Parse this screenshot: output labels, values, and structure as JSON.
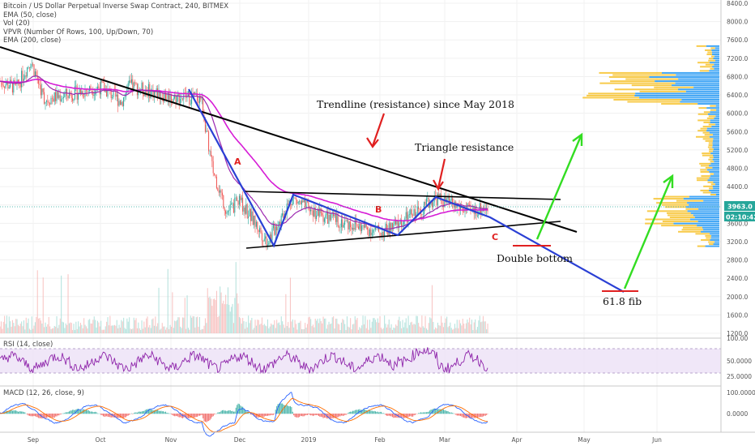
{
  "legend": {
    "title": "Bitcoin / US Dollar Perpetual Inverse Swap Contract, 240, BITMEX",
    "lines": [
      "EMA (50, close)",
      "Vol (20)",
      "VPVR (Number Of Rows, 100, Up/Down, 70)",
      "EMA (200, close)"
    ]
  },
  "panels": {
    "rsi_label": "RSI (14, close)",
    "macd_label": "MACD (12, 26, close, 9)"
  },
  "price_axis": {
    "ticks": [
      "8400.0",
      "8000.0",
      "7600.0",
      "7200.0",
      "6800.0",
      "6400.0",
      "6000.0",
      "5600.0",
      "5200.0",
      "4800.0",
      "4400.0",
      "4000.0",
      "3600.0",
      "3200.0",
      "2800.0",
      "2400.0",
      "2000.0",
      "1600.0",
      "1200.0"
    ],
    "current_price": "3963.0",
    "countdown": "02:10:42"
  },
  "rsi_axis": {
    "ticks": [
      "100.00",
      "50.0000",
      "25.0000"
    ]
  },
  "macd_axis": {
    "ticks": [
      "100.0000",
      "0.0000"
    ]
  },
  "time_axis": {
    "labels": [
      "Sep",
      "Oct",
      "Nov",
      "Dec",
      "2019",
      "Feb",
      "Mar",
      "Apr",
      "May",
      "Jun"
    ]
  },
  "annotations": {
    "trendline": "Trendline (resistance) since May 2018",
    "triangle": "Triangle resistance",
    "double_bottom": "Double bottom",
    "fib": "61.8 fib",
    "wave_a": "A",
    "wave_b": "B",
    "wave_c": "C"
  },
  "colors": {
    "candle_up": "#26a69a",
    "candle_down": "#ef5350",
    "ema50": "#9c27b0",
    "ema200": "#d61cd6",
    "wave": "#2a3fd4",
    "trend": "#000000",
    "green_arrow": "#33dd22",
    "red_arrow": "#e02020",
    "vpvr_up": "#2196f3",
    "vpvr_down": "#f7c22c",
    "rsi_line": "#8e24aa",
    "rsi_band": "#e9dcf5"
  },
  "chart_data": {
    "type": "candlestick",
    "title": "Bitcoin / US Dollar Perpetual Inverse Swap Contract, 240, BITMEX",
    "y_range": [
      1200,
      8400
    ],
    "price_path": [
      {
        "x": "Aug 25",
        "y": 6700
      },
      {
        "x": "Sep 1",
        "y": 6550
      },
      {
        "x": "Sep 5",
        "y": 7150
      },
      {
        "x": "Sep 10",
        "y": 6300
      },
      {
        "x": "Sep 20",
        "y": 6450
      },
      {
        "x": "Oct 1",
        "y": 6580
      },
      {
        "x": "Oct 11",
        "y": 6250
      },
      {
        "x": "Oct 15",
        "y": 6600
      },
      {
        "x": "Nov 1",
        "y": 6350
      },
      {
        "x": "Nov 14",
        "y": 6350
      },
      {
        "x": "Nov 20",
        "y": 4800
      },
      {
        "x": "Nov 25",
        "y": 3850
      },
      {
        "x": "Dec 1",
        "y": 4100
      },
      {
        "x": "Dec 15",
        "y": 3200
      },
      {
        "x": "Dec 24",
        "y": 4150
      },
      {
        "x": "Jan 1",
        "y": 3900
      },
      {
        "x": "Jan 10",
        "y": 3700
      },
      {
        "x": "Feb 1",
        "y": 3400
      },
      {
        "x": "Feb 8",
        "y": 3550
      },
      {
        "x": "Feb 24",
        "y": 4150
      },
      {
        "x": "Mar 10",
        "y": 3850
      },
      {
        "x": "Mar 17",
        "y": 3963
      }
    ],
    "current_price": 3963.0,
    "rsi_range": [
      0,
      100
    ],
    "annotations": [
      "Trendline (resistance) since May 2018",
      "Triangle resistance",
      "Double bottom",
      "61.8 fib",
      "A",
      "B",
      "C"
    ]
  }
}
